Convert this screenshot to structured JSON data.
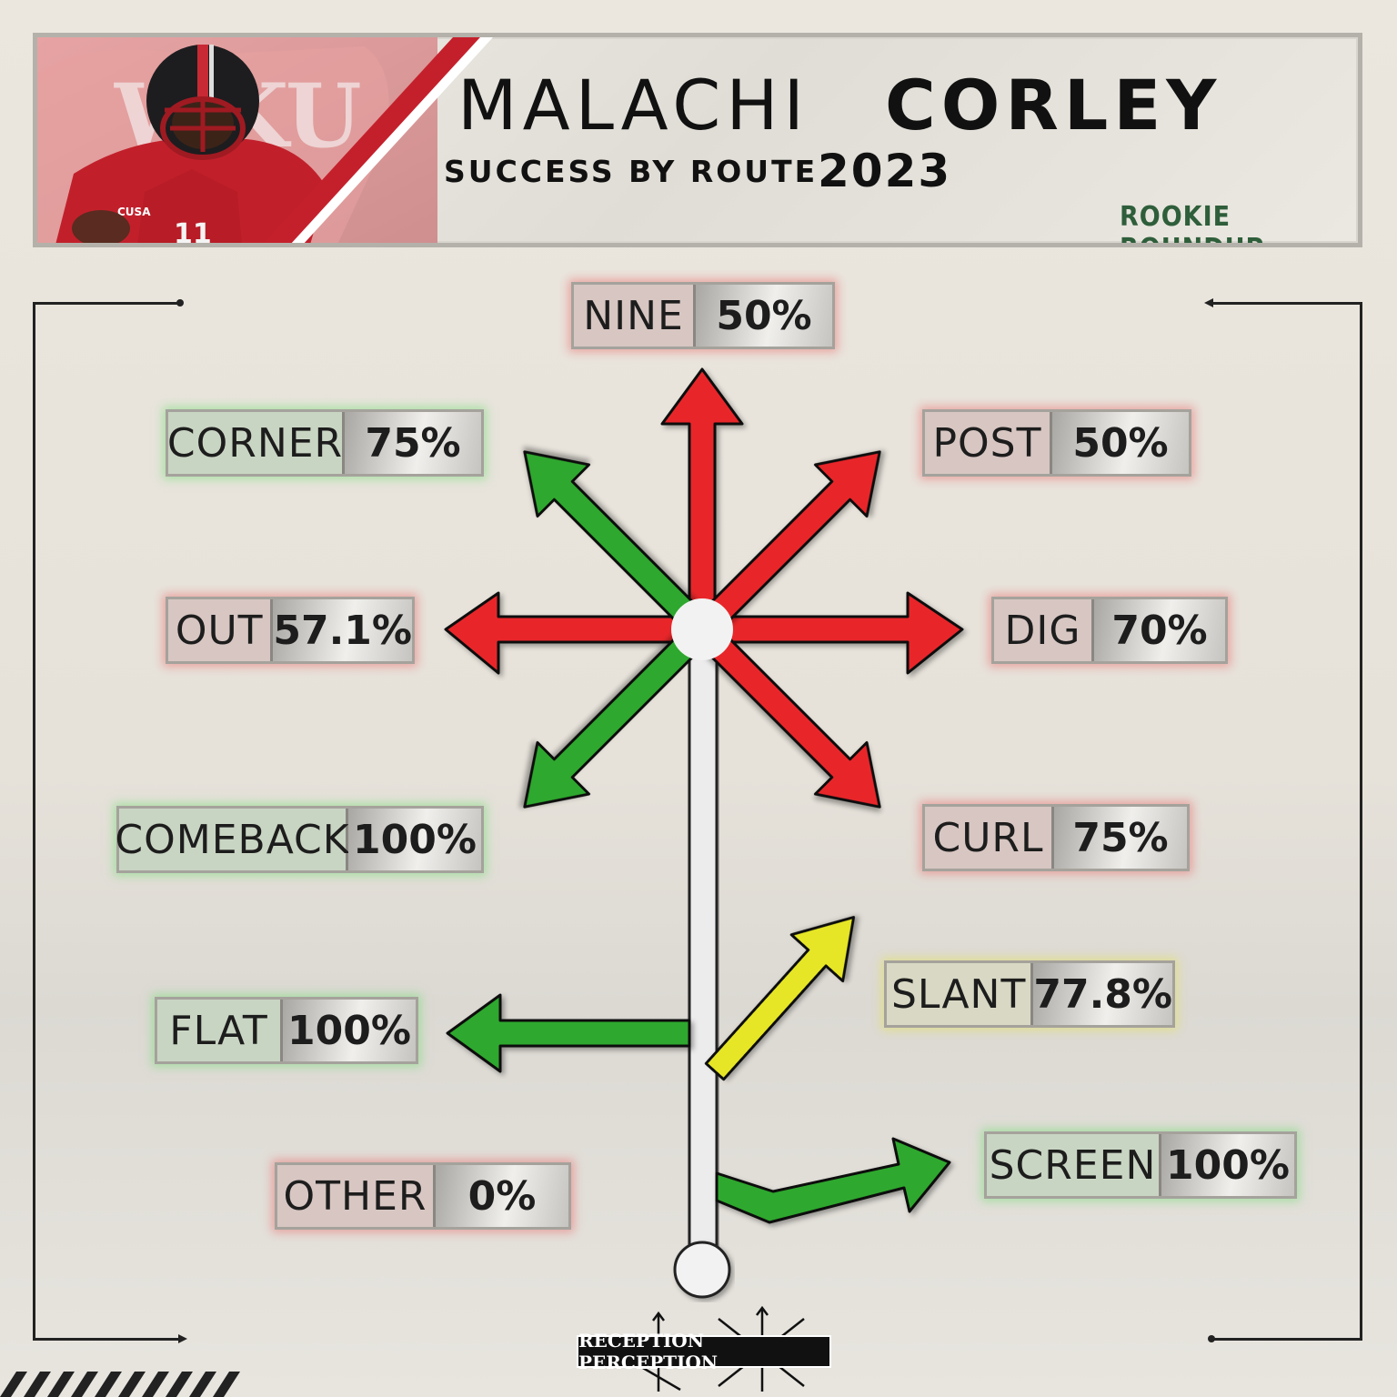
{
  "header": {
    "first_name": "MALACHI",
    "last_name": "CORLEY",
    "subtitle": "SUCCESS BY ROUTE",
    "year": "2023",
    "brand": "ROOKIE ROUNDUP"
  },
  "photo": {
    "helmet_logo_text": "WKU",
    "jersey_number": "11",
    "patch_text": "CUSA"
  },
  "routes": [
    {
      "name": "NINE",
      "pct": "50%",
      "status": "red"
    },
    {
      "name": "CORNER",
      "pct": "75%",
      "status": "green"
    },
    {
      "name": "POST",
      "pct": "50%",
      "status": "red"
    },
    {
      "name": "OUT",
      "pct": "57.1%",
      "status": "red"
    },
    {
      "name": "DIG",
      "pct": "70%",
      "status": "red"
    },
    {
      "name": "COMEBACK",
      "pct": "100%",
      "status": "green"
    },
    {
      "name": "CURL",
      "pct": "75%",
      "status": "red"
    },
    {
      "name": "SLANT",
      "pct": "77.8%",
      "status": "yellow"
    },
    {
      "name": "FLAT",
      "pct": "100%",
      "status": "green"
    },
    {
      "name": "OTHER",
      "pct": "0%",
      "status": "red"
    },
    {
      "name": "SCREEN",
      "pct": "100%",
      "status": "green"
    }
  ],
  "colors": {
    "green": "#2ea82e",
    "red": "#e8262a",
    "yellow": "#e6e628",
    "stem": "#e9e9e9",
    "brand": "#2e5e3a",
    "accent_red": "#c4202c"
  },
  "footer": {
    "logo_text": "RECEPTION PERCEPTION"
  }
}
